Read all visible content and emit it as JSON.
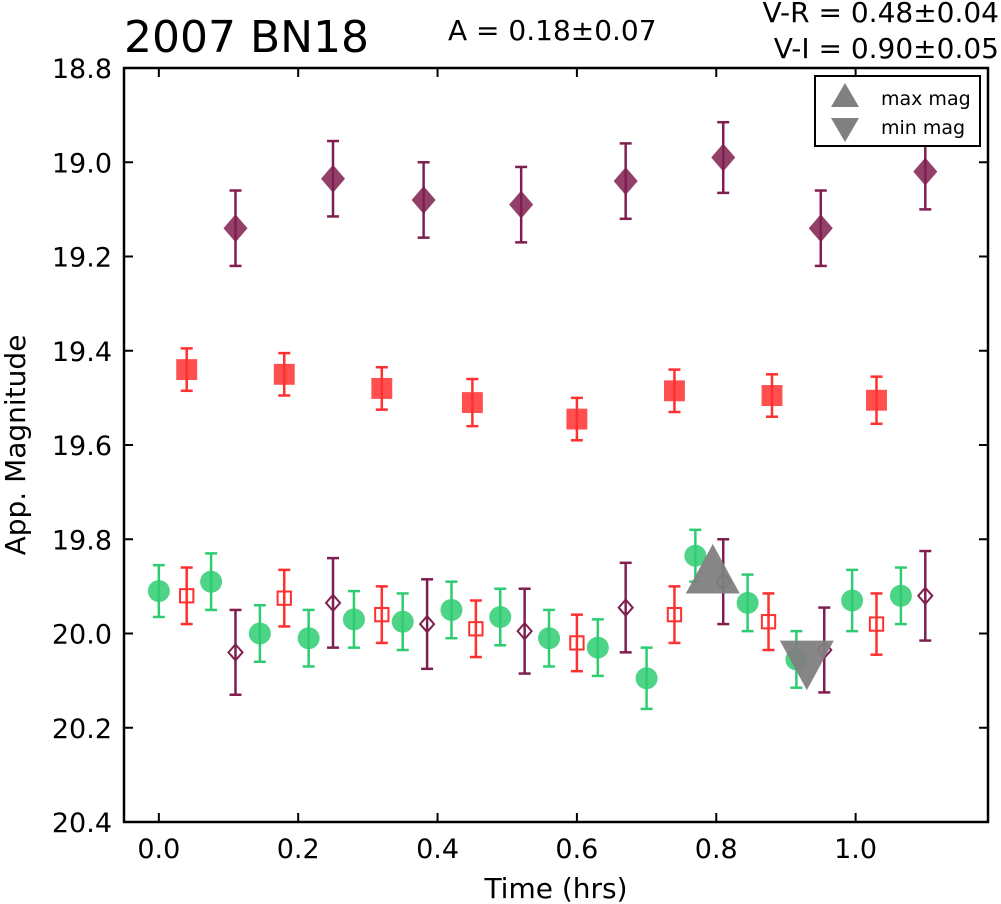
{
  "header": {
    "title": "2007 BN18",
    "amplitude": "A  = 0.18±0.07",
    "color_vr": "V-R = 0.48±0.04",
    "color_vi": "V-I  = 0.90±0.05"
  },
  "chart_data": {
    "type": "scatter",
    "xlabel": "Time (hrs)",
    "ylabel": "App. Magnitude",
    "xlim": [
      -0.05,
      1.19
    ],
    "ylim": [
      20.4,
      18.8
    ],
    "y_inverted": true,
    "xticks": [
      "0.0",
      "0.2",
      "0.4",
      "0.6",
      "0.8",
      "1.0"
    ],
    "yticks": [
      "18.8",
      "19.0",
      "19.2",
      "19.4",
      "19.6",
      "19.8",
      "20.0",
      "20.2",
      "20.4"
    ],
    "grid": false,
    "legend": {
      "placement": "top-right",
      "entries": [
        {
          "label": "max mag",
          "marker": "triangle-up",
          "color": "#808080"
        },
        {
          "label": "min mag",
          "marker": "triangle-down",
          "color": "#808080"
        }
      ]
    },
    "series": [
      {
        "marker": "diamond",
        "filled": true,
        "color": "#7f1f4f",
        "x": [
          0.11,
          0.25,
          0.38,
          0.52,
          0.67,
          0.81,
          0.95,
          1.1
        ],
        "y": [
          19.14,
          19.035,
          19.08,
          19.09,
          19.04,
          18.99,
          19.14,
          19.02
        ],
        "err": [
          0.08,
          0.08,
          0.08,
          0.08,
          0.08,
          0.075,
          0.08,
          0.08
        ]
      },
      {
        "marker": "square",
        "filled": true,
        "color": "#ff3030",
        "x": [
          0.04,
          0.18,
          0.32,
          0.45,
          0.6,
          0.74,
          0.88,
          1.03
        ],
        "y": [
          19.44,
          19.45,
          19.48,
          19.51,
          19.545,
          19.485,
          19.495,
          19.505
        ],
        "err": [
          0.045,
          0.045,
          0.045,
          0.05,
          0.045,
          0.045,
          0.045,
          0.05
        ]
      },
      {
        "marker": "circle",
        "filled": true,
        "color": "#2ecc71",
        "x": [
          0.0,
          0.075,
          0.145,
          0.215,
          0.28,
          0.35,
          0.42,
          0.49,
          0.56,
          0.63,
          0.7,
          0.77,
          0.845,
          0.915,
          0.995,
          1.065
        ],
        "y": [
          19.91,
          19.89,
          20.0,
          20.01,
          19.97,
          19.975,
          19.95,
          19.965,
          20.01,
          20.03,
          20.095,
          19.835,
          19.935,
          20.055,
          19.93,
          19.92
        ],
        "err": [
          0.055,
          0.06,
          0.06,
          0.06,
          0.06,
          0.06,
          0.06,
          0.06,
          0.06,
          0.06,
          0.065,
          0.055,
          0.06,
          0.06,
          0.065,
          0.06
        ]
      },
      {
        "marker": "square",
        "filled": false,
        "color": "#ff3030",
        "x": [
          0.04,
          0.18,
          0.32,
          0.455,
          0.6,
          0.74,
          0.875,
          1.03
        ],
        "y": [
          19.92,
          19.925,
          19.96,
          19.99,
          20.02,
          19.96,
          19.975,
          19.98
        ],
        "err": [
          0.06,
          0.06,
          0.06,
          0.06,
          0.06,
          0.06,
          0.06,
          0.065
        ]
      },
      {
        "marker": "diamond",
        "filled": false,
        "color": "#7f1f4f",
        "x": [
          0.11,
          0.25,
          0.385,
          0.525,
          0.67,
          0.81,
          0.955,
          1.1
        ],
        "y": [
          20.04,
          19.935,
          19.98,
          19.995,
          19.945,
          19.89,
          20.035,
          19.92
        ],
        "err": [
          0.09,
          0.095,
          0.095,
          0.09,
          0.095,
          0.09,
          0.09,
          0.095
        ]
      }
    ],
    "annotations": [
      {
        "marker": "triangle-up",
        "label": "max mag",
        "x": 0.795,
        "y": 19.88,
        "color": "#808080"
      },
      {
        "marker": "triangle-down",
        "label": "min mag",
        "x": 0.93,
        "y": 20.05,
        "color": "#808080"
      }
    ]
  }
}
